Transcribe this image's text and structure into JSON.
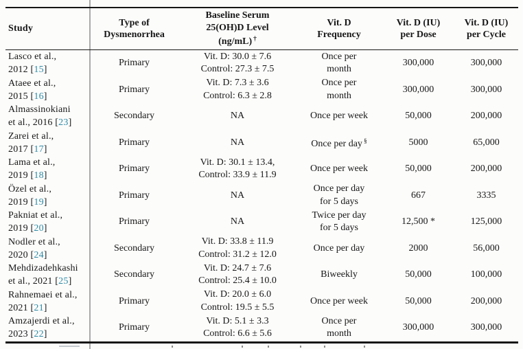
{
  "header": {
    "study": "Study",
    "type_lines": [
      "Type of",
      "Dysmenorrhea"
    ],
    "baseline_lines": [
      "Baseline Serum",
      "25(OH)D Level",
      "(ng/mL)"
    ],
    "baseline_sup": "†",
    "freq_lines": [
      "Vit. D",
      "Frequency"
    ],
    "dose_lines": [
      "Vit. D (IU)",
      "per Dose"
    ],
    "cycle_lines": [
      "Vit. D (IU)",
      "per Cycle"
    ]
  },
  "accent_colors": {
    "citation_link": "#2e8aa6",
    "rule": "#161616",
    "divider_gray": "#a9a9a9"
  },
  "rows": [
    {
      "study1": "Lasco et al.,",
      "study2_pre": "2012 [",
      "ref": "15",
      "study2_post": "]",
      "type": "Primary",
      "baseline": [
        "Vit. D: 30.0 ± 7.6",
        "Control: 27.3 ± 7.5"
      ],
      "freq": [
        "Once per",
        "month"
      ],
      "freq_sup": "",
      "dose": "300,000",
      "cycle": "300,000"
    },
    {
      "study1": "Ataee et al.,",
      "study2_pre": "2015 [",
      "ref": "16",
      "study2_post": "]",
      "type": "Primary",
      "baseline": [
        "Vit. D: 7.3 ± 3.6",
        "Control: 6.3 ± 2.8"
      ],
      "freq": [
        "Once per",
        "month"
      ],
      "freq_sup": "",
      "dose": "300,000",
      "cycle": "300,000"
    },
    {
      "study1": "Almassinokiani",
      "study2_pre": "et al., 2016 [",
      "ref": "23",
      "study2_post": "]",
      "type": "Secondary",
      "baseline": [
        "NA"
      ],
      "freq": [
        "Once per week"
      ],
      "freq_sup": "",
      "dose": "50,000",
      "cycle": "200,000"
    },
    {
      "study1": "Zarei et al.,",
      "study2_pre": "2017 [",
      "ref": "17",
      "study2_post": "]",
      "type": "Primary",
      "baseline": [
        "NA"
      ],
      "freq": [
        "Once per day"
      ],
      "freq_sup": "§",
      "dose": "5000",
      "cycle": "65,000"
    },
    {
      "study1": "Lama et al.,",
      "study2_pre": "2019 [",
      "ref": "18",
      "study2_post": "]",
      "type": "Primary",
      "baseline": [
        "Vit. D: 30.1 ± 13.4,",
        "Control: 33.9 ± 11.9"
      ],
      "freq": [
        "Once per week"
      ],
      "freq_sup": "",
      "dose": "50,000",
      "cycle": "200,000"
    },
    {
      "study1": "Özel et al.,",
      "study2_pre": "2019 [",
      "ref": "19",
      "study2_post": "]",
      "type": "Primary",
      "baseline": [
        "NA"
      ],
      "freq": [
        "Once per day",
        "for 5 days"
      ],
      "freq_sup": "",
      "dose": "667",
      "cycle": "3335"
    },
    {
      "study1": "Pakniat et al.,",
      "study2_pre": "2019 [",
      "ref": "20",
      "study2_post": "]",
      "type": "Primary",
      "baseline": [
        "NA"
      ],
      "freq": [
        "Twice per day",
        "for 5 days"
      ],
      "freq_sup": "",
      "dose": "12,500 *",
      "cycle": "125,000"
    },
    {
      "study1": "Nodler et al.,",
      "study2_pre": "2020 [",
      "ref": "24",
      "study2_post": "]",
      "type": "Secondary",
      "baseline": [
        "Vit. D: 33.8 ± 11.9",
        "Control: 31.2 ± 12.0"
      ],
      "freq": [
        "Once per day"
      ],
      "freq_sup": "",
      "dose": "2000",
      "cycle": "56,000"
    },
    {
      "study1": "Mehdizadehkashi",
      "study2_pre": "et al., 2021 [",
      "ref": "25",
      "study2_post": "]",
      "type": "Secondary",
      "baseline": [
        "Vit. D: 24.7 ± 7.6",
        "Control: 25.4 ± 10.0"
      ],
      "freq": [
        "Biweekly"
      ],
      "freq_sup": "",
      "dose": "50,000",
      "cycle": "100,000"
    },
    {
      "study1": "Rahnemaei et al.,",
      "study2_pre": "2021 [",
      "ref": "21",
      "study2_post": "]",
      "type": "Primary",
      "baseline": [
        "Vit. D: 20.0 ± 6.0",
        "Control: 19.5 ± 5.5"
      ],
      "freq": [
        "Once per week"
      ],
      "freq_sup": "",
      "dose": "50,000",
      "cycle": "200,000"
    },
    {
      "study1": "Amzajerdi et al.,",
      "study2_pre": "2023 [",
      "ref": "22",
      "study2_post": "]",
      "type": "Primary",
      "baseline": [
        "Vit. D: 5.1 ± 3.3",
        "Control: 6.6 ± 5.6"
      ],
      "freq": [
        "Once per",
        "month"
      ],
      "freq_sup": "",
      "dose": "300,000",
      "cycle": "300,000"
    }
  ]
}
